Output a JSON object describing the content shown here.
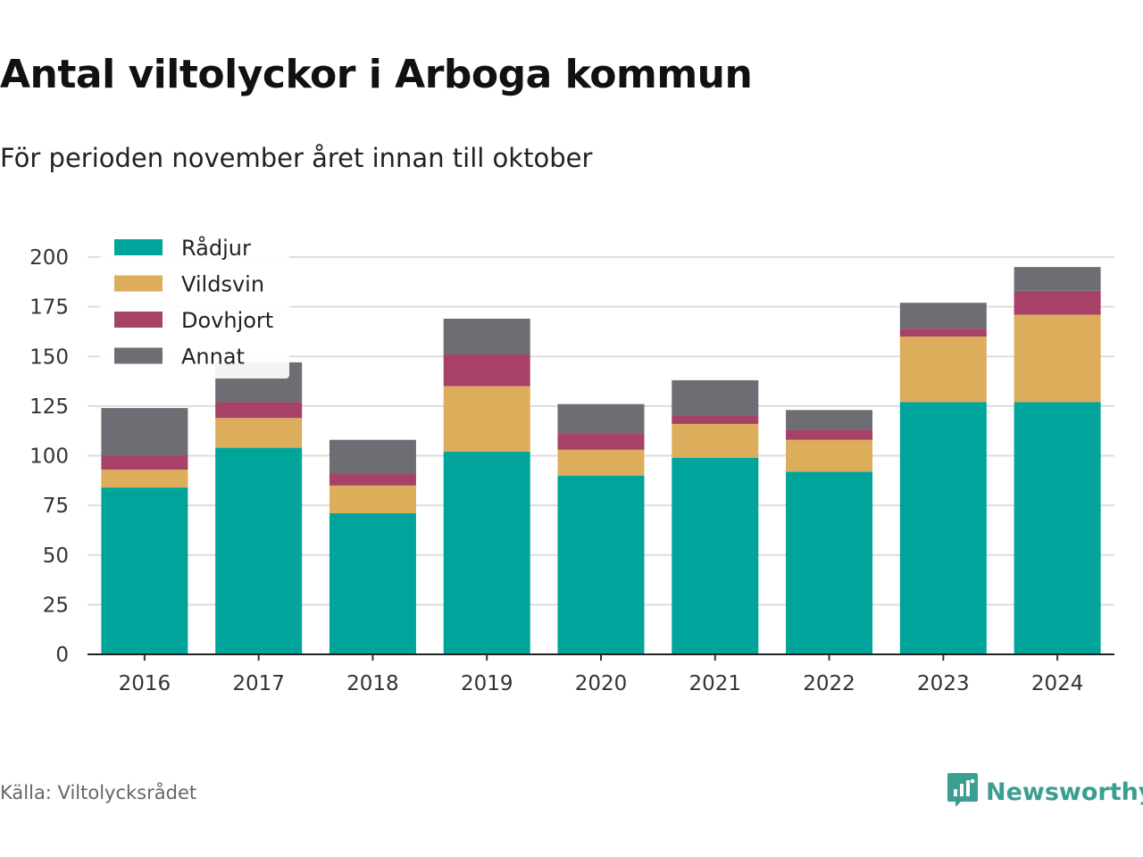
{
  "title": "Antal viltolyckor i Arboga kommun",
  "subtitle": "För perioden november året innan till oktober",
  "source": "Källa: Viltolycksrådet",
  "brand": {
    "name": "Newsworthy",
    "icon": "newsworthy-logo-icon",
    "color": "#3a9e92"
  },
  "chart_data": {
    "type": "bar",
    "stacked": true,
    "title": "Antal viltolyckor i Arboga kommun",
    "subtitle": "För perioden november året innan till oktober",
    "xlabel": "",
    "ylabel": "",
    "ylim": [
      0,
      200
    ],
    "yticks": [
      0,
      25,
      50,
      75,
      100,
      125,
      150,
      175,
      200
    ],
    "grid": true,
    "legend_position": "top-left",
    "categories": [
      "2016",
      "2017",
      "2018",
      "2019",
      "2020",
      "2021",
      "2022",
      "2023",
      "2024"
    ],
    "series": [
      {
        "name": "Rådjur",
        "color": "#00a49a",
        "values": [
          84,
          104,
          71,
          102,
          90,
          99,
          92,
          127,
          127
        ]
      },
      {
        "name": "Vildsvin",
        "color": "#dcae5c",
        "values": [
          9,
          15,
          14,
          33,
          13,
          17,
          16,
          33,
          44
        ]
      },
      {
        "name": "Dovhjort",
        "color": "#a84168",
        "values": [
          7,
          8,
          6,
          16,
          8,
          4,
          5,
          4,
          12
        ]
      },
      {
        "name": "Annat",
        "color": "#6e6d73",
        "values": [
          24,
          20,
          17,
          18,
          15,
          18,
          10,
          13,
          12
        ]
      }
    ]
  }
}
